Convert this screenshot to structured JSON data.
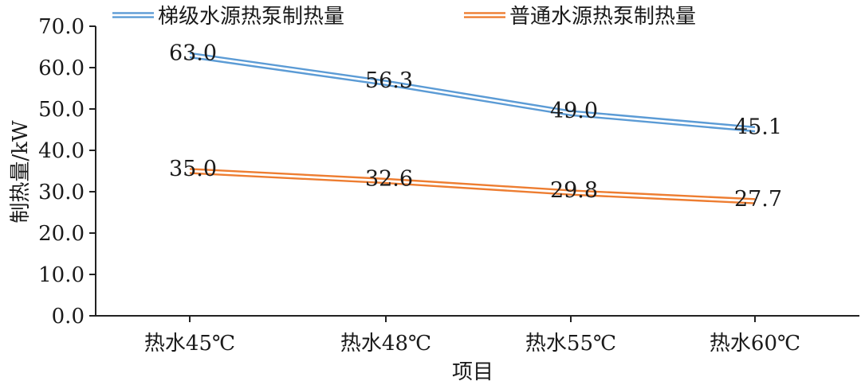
{
  "chart_data": {
    "type": "line",
    "title": "",
    "xlabel": "项目",
    "ylabel": "制热量/kW",
    "categories": [
      "热水45℃",
      "热水48℃",
      "热水55℃",
      "热水60℃"
    ],
    "ylim": [
      0,
      70
    ],
    "yticks": [
      0,
      10,
      20,
      30,
      40,
      50,
      60,
      70
    ],
    "ytick_labels": [
      "0.0",
      "10.0",
      "20.0",
      "30.0",
      "40.0",
      "50.0",
      "60.0",
      "70.0"
    ],
    "grid": false,
    "legend_position": "top",
    "series": [
      {
        "name": "梯级水源热泵制热量",
        "values": [
          63.0,
          56.3,
          49.0,
          45.1
        ],
        "labels": [
          "63.0",
          "56.3",
          "49.0",
          "45.1"
        ],
        "color": "#5b9bd5"
      },
      {
        "name": "普通水源热泵制热量",
        "values": [
          35.0,
          32.6,
          29.8,
          27.7
        ],
        "labels": [
          "35.0",
          "32.6",
          "29.8",
          "27.7"
        ],
        "color": "#ed7d31"
      }
    ]
  }
}
